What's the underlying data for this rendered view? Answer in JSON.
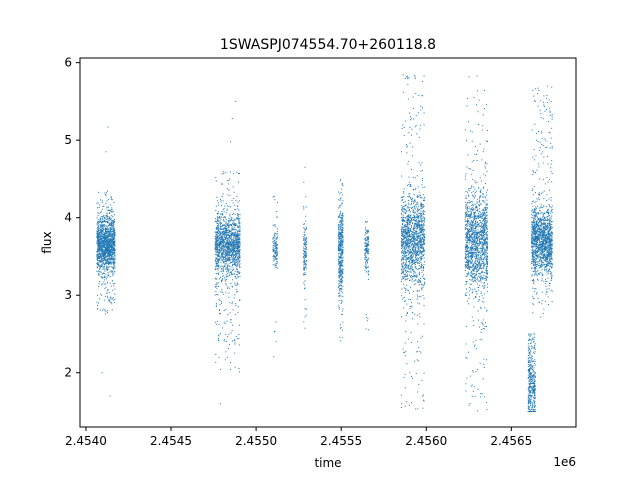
{
  "chart_data": {
    "type": "scatter",
    "title": "1SWASPJ074554.70+260118.8",
    "xlabel": "time",
    "ylabel": "flux",
    "x_offset_label": "1e6",
    "x_scale": 1000000,
    "xlim": [
      2453965,
      2456880
    ],
    "ylim": [
      1.3,
      6.06
    ],
    "xticks": [
      2454000,
      2454500,
      2455000,
      2455500,
      2456000,
      2456500
    ],
    "xtick_labels": [
      "2.4540",
      "2.4545",
      "2.4550",
      "2.4555",
      "2.4560",
      "2.4565"
    ],
    "yticks": [
      2,
      3,
      4,
      5,
      6
    ],
    "ytick_labels": [
      "2",
      "3",
      "4",
      "5",
      "6"
    ],
    "grid": false,
    "marker_color": "#1f77b4",
    "series": [
      {
        "observing_seasons": [
          {
            "start": 2454065,
            "end": 2454170,
            "median_flux": 3.65,
            "core_spread": 0.18,
            "wing_low": 2.75,
            "wing_high": 4.35,
            "density": "dense",
            "outliers": [
              [
                2454130,
                5.17
              ],
              [
                2454118,
                4.85
              ],
              [
                2454095,
                2.0
              ],
              [
                2454142,
                1.7
              ]
            ]
          },
          {
            "start": 2454760,
            "end": 2454905,
            "median_flux": 3.65,
            "core_spread": 0.2,
            "wing_low": 2.0,
            "wing_high": 4.6,
            "density": "dense",
            "outliers": [
              [
                2454880,
                5.5
              ],
              [
                2454860,
                5.28
              ],
              [
                2454850,
                4.98
              ],
              [
                2454790,
                1.6
              ]
            ]
          },
          {
            "start": 2455100,
            "end": 2455125,
            "median_flux": 3.6,
            "core_spread": 0.12,
            "wing_low": 2.2,
            "wing_high": 4.35,
            "density": "sparse",
            "outliers": []
          },
          {
            "start": 2455280,
            "end": 2455295,
            "median_flux": 3.55,
            "core_spread": 0.2,
            "wing_low": 2.5,
            "wing_high": 4.6,
            "density": "sparse",
            "outliers": [
              [
                2455288,
                4.65
              ]
            ]
          },
          {
            "start": 2455485,
            "end": 2455510,
            "median_flux": 3.6,
            "core_spread": 0.3,
            "wing_low": 2.4,
            "wing_high": 4.5,
            "density": "medium",
            "outliers": []
          },
          {
            "start": 2455640,
            "end": 2455660,
            "median_flux": 3.6,
            "core_spread": 0.15,
            "wing_low": 2.5,
            "wing_high": 3.95,
            "density": "sparse",
            "outliers": []
          },
          {
            "start": 2455855,
            "end": 2455990,
            "median_flux": 3.7,
            "core_spread": 0.3,
            "wing_low": 1.5,
            "wing_high": 5.85,
            "density": "dense",
            "outliers": []
          },
          {
            "start": 2456230,
            "end": 2456360,
            "median_flux": 3.7,
            "core_spread": 0.3,
            "wing_low": 1.5,
            "wing_high": 5.85,
            "density": "dense",
            "outliers": []
          },
          {
            "start": 2456600,
            "end": 2456640,
            "median_flux": 1.75,
            "core_spread": 0.35,
            "wing_low": 1.5,
            "wing_high": 2.5,
            "density": "medium",
            "outliers": []
          },
          {
            "start": 2456620,
            "end": 2456740,
            "median_flux": 3.7,
            "core_spread": 0.22,
            "wing_low": 2.7,
            "wing_high": 5.7,
            "density": "dense",
            "outliers": []
          }
        ]
      }
    ]
  }
}
